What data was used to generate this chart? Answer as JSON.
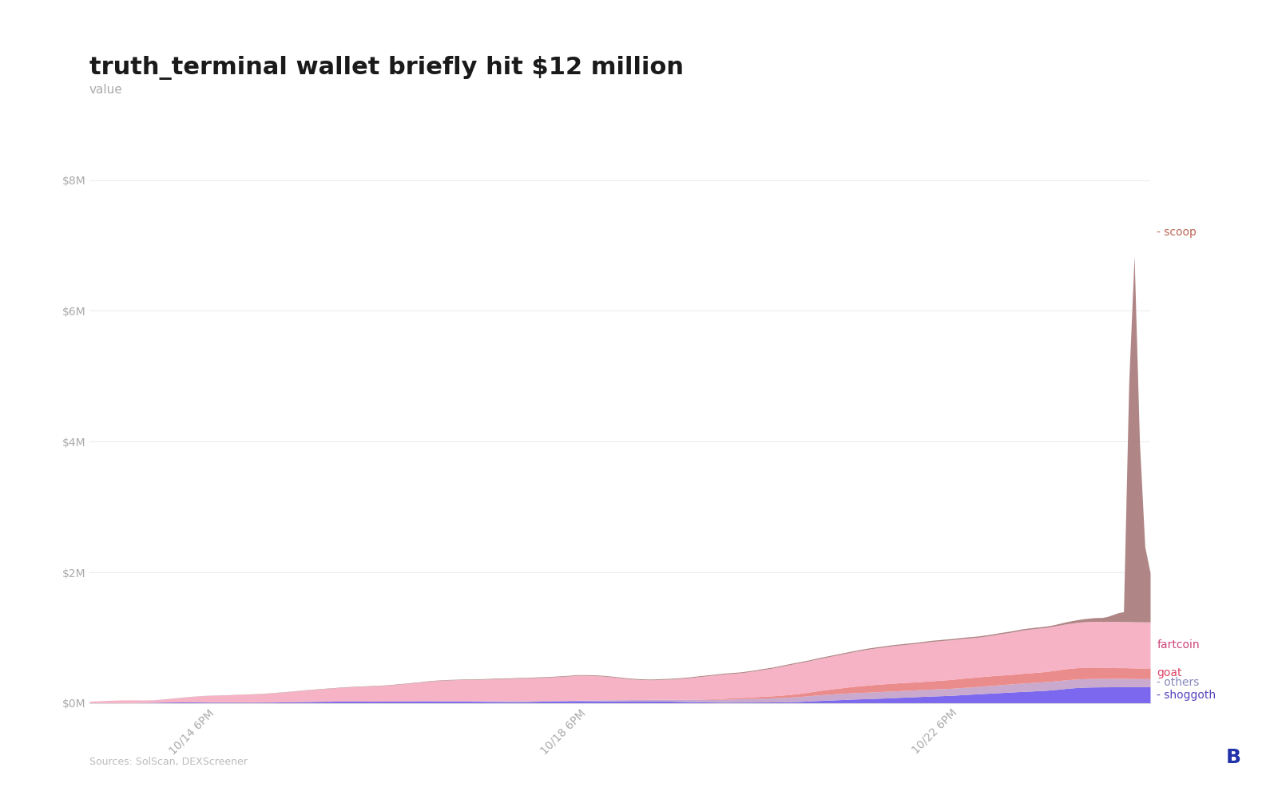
{
  "title": "truth_terminal wallet briefly hit $12 million",
  "ylabel": "value",
  "source": "Sources: SolScan, DEXScreener",
  "yticks": [
    0,
    2000000,
    4000000,
    6000000,
    8000000
  ],
  "ytick_labels": [
    "$0M",
    "$2M",
    "$4M",
    "$6M",
    "$8M"
  ],
  "ylim": [
    0,
    8800000
  ],
  "xtick_labels": [
    "10/14 6PM",
    "10/18 6PM",
    "10/22 6PM"
  ],
  "xtick_positions": [
    0.12,
    0.47,
    0.82
  ],
  "colors": {
    "shoggoth": "#7B68EE",
    "others": "#C4A0C8",
    "goat": "#E87878",
    "fartcoin": "#F4A0B8",
    "scoop": "#A87878"
  },
  "label_colors": {
    "scoop": "#bb6655",
    "fartcoin": "#cc4477",
    "goat": "#dd4466",
    "others": "#8888bb",
    "shoggoth": "#5544bb"
  },
  "n_points": 200,
  "background_color": "#ffffff",
  "title_fontsize": 22,
  "label_fontsize": 11,
  "tick_fontsize": 10
}
